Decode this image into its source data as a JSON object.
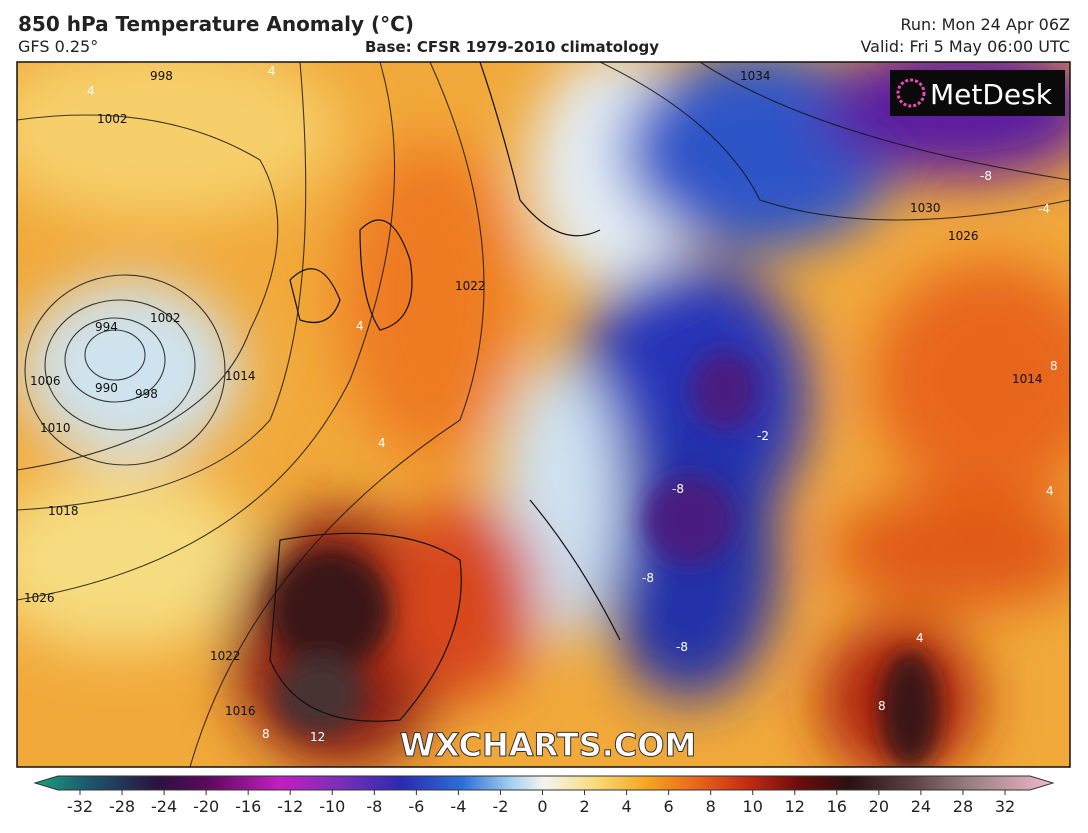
{
  "header": {
    "title": "850 hPa Temperature Anomaly (°C)",
    "model": "GFS 0.25°",
    "base": "Base: CFSR 1979-2010 climatology",
    "run": "Run: Mon 24 Apr 06Z",
    "valid": "Valid: Fri 5 May 06:00 UTC"
  },
  "logo": "MetDesk",
  "watermark": "WXCHARTS.COM",
  "isobar_labels": [
    "998",
    "1002",
    "994",
    "1002",
    "990",
    "998",
    "1006",
    "1010",
    "1014",
    "1018",
    "1022",
    "1026",
    "1022",
    "1016",
    "1034",
    "1030",
    "1026",
    "1014"
  ],
  "anomaly_labels": [
    "4",
    "4",
    "4",
    "4",
    "-8",
    "-4",
    "-2",
    "-8",
    "-8",
    "-8",
    "8",
    "4",
    "12",
    "8",
    "8",
    "4"
  ],
  "colorbar": {
    "ticks": [
      -32,
      -28,
      -24,
      -20,
      -16,
      -12,
      -10,
      -8,
      -6,
      -4,
      -2,
      0,
      2,
      4,
      6,
      8,
      10,
      12,
      16,
      20,
      24,
      28,
      32
    ]
  }
}
